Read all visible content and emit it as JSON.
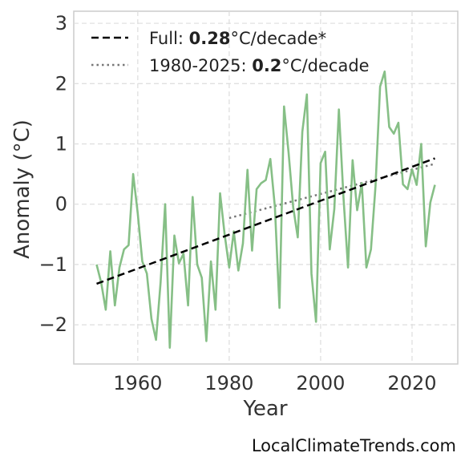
{
  "chart_data": {
    "type": "line",
    "xlabel": "Year",
    "ylabel": "Anomaly (°C)",
    "xlim": [
      1946,
      2030
    ],
    "ylim": [
      -2.65,
      3.2
    ],
    "xticks": [
      1960,
      1980,
      2000,
      2020
    ],
    "yticks": [
      -2,
      -1,
      0,
      1,
      2,
      3
    ],
    "ytick_labels": [
      "−2",
      "−1",
      "0",
      "1",
      "2",
      "3"
    ],
    "grid": true,
    "legend_position": "top-left",
    "series": [
      {
        "color": "#86bf86",
        "x": [
          1951,
          1952,
          1953,
          1954,
          1955,
          1956,
          1957,
          1958,
          1959,
          1960,
          1961,
          1962,
          1963,
          1964,
          1965,
          1966,
          1967,
          1968,
          1969,
          1970,
          1971,
          1972,
          1973,
          1974,
          1975,
          1976,
          1977,
          1978,
          1979,
          1980,
          1981,
          1982,
          1983,
          1984,
          1985,
          1986,
          1987,
          1988,
          1989,
          1990,
          1991,
          1992,
          1993,
          1994,
          1995,
          1996,
          1997,
          1998,
          1999,
          2000,
          2001,
          2002,
          2003,
          2004,
          2005,
          2006,
          2007,
          2008,
          2009,
          2010,
          2011,
          2012,
          2013,
          2014,
          2015,
          2016,
          2017,
          2018,
          2019,
          2020,
          2021,
          2022,
          2023,
          2024,
          2025
        ],
        "y": [
          -1.0,
          -1.3,
          -1.75,
          -0.78,
          -1.68,
          -1.05,
          -0.75,
          -0.68,
          0.5,
          -0.15,
          -0.95,
          -1.15,
          -1.9,
          -2.25,
          -1.3,
          0.0,
          -2.38,
          -0.52,
          -0.98,
          -0.82,
          -1.68,
          0.12,
          -1.0,
          -1.22,
          -2.27,
          -0.95,
          -1.75,
          0.18,
          -0.5,
          -1.05,
          -0.45,
          -1.1,
          -0.65,
          0.57,
          -0.77,
          0.25,
          0.35,
          0.4,
          0.75,
          -0.05,
          -1.72,
          1.62,
          0.85,
          -0.05,
          -0.55,
          1.2,
          1.82,
          -1.15,
          -1.95,
          0.68,
          0.87,
          -0.75,
          -0.08,
          1.57,
          0.12,
          -1.05,
          0.73,
          -0.1,
          0.35,
          -1.05,
          -0.75,
          0.3,
          1.95,
          2.2,
          1.28,
          1.17,
          1.35,
          0.33,
          0.25,
          0.58,
          0.32,
          1.0,
          -0.7,
          0.03,
          0.32
        ]
      }
    ],
    "trend_full": {
      "x": [
        1951,
        2025
      ],
      "y": [
        -1.32,
        0.76
      ],
      "color": "#000000"
    },
    "trend_recent": {
      "x": [
        1980,
        2025
      ],
      "y": [
        -0.23,
        0.67
      ],
      "color": "#777777"
    }
  },
  "legend": {
    "full_prefix": "Full: ",
    "full_value": "0.28",
    "full_suffix": "°C/decade*",
    "recent_prefix": "1980-2025: ",
    "recent_value": "0.2",
    "recent_suffix": "°C/decade"
  },
  "source": "LocalClimateTrends.com"
}
